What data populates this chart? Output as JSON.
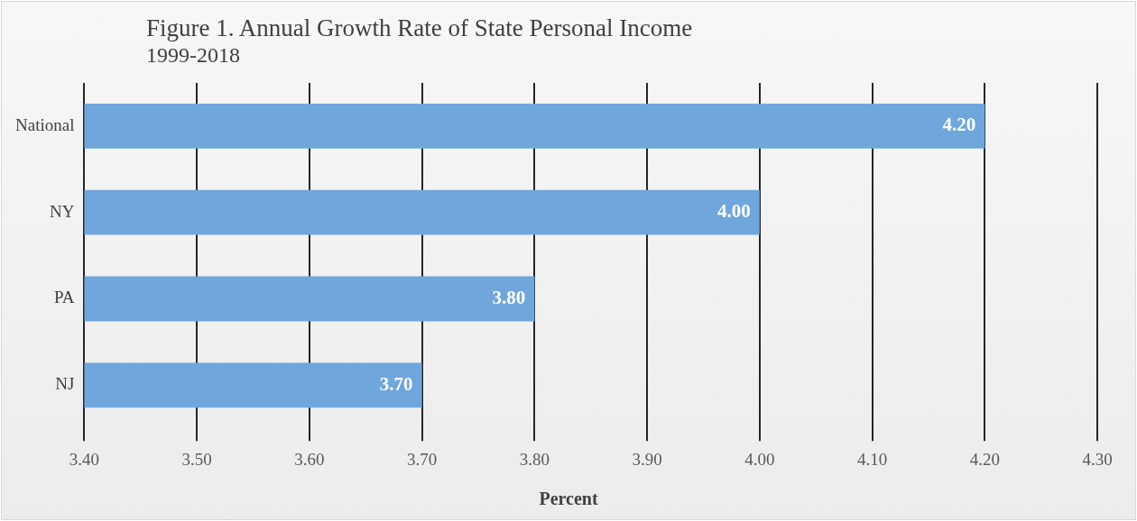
{
  "chart_data": {
    "type": "bar",
    "orientation": "horizontal",
    "title": "Figure 1.  Annual Growth Rate of State Personal Income",
    "subtitle": "1999-2018",
    "xlabel": "Percent",
    "categories": [
      "National",
      "NY",
      "PA",
      "NJ"
    ],
    "values": [
      4.2,
      4.0,
      3.8,
      3.7
    ],
    "color": "#6fa6db",
    "value_labels": [
      "4.20",
      "4.00",
      "3.80",
      "3.70"
    ],
    "xlim": [
      3.4,
      4.3
    ],
    "xticks": [
      {
        "value": 3.4,
        "label": "3.40"
      },
      {
        "value": 3.5,
        "label": "3.50"
      },
      {
        "value": 3.6,
        "label": "3.60"
      },
      {
        "value": 3.7,
        "label": "3.70"
      },
      {
        "value": 3.8,
        "label": "3.80"
      },
      {
        "value": 3.9,
        "label": "3.90"
      },
      {
        "value": 4.0,
        "label": "4.00"
      },
      {
        "value": 4.1,
        "label": "4.10"
      },
      {
        "value": 4.2,
        "label": "4.20"
      },
      {
        "value": 4.3,
        "label": "4.30"
      }
    ],
    "grid": "x",
    "legend": false
  }
}
